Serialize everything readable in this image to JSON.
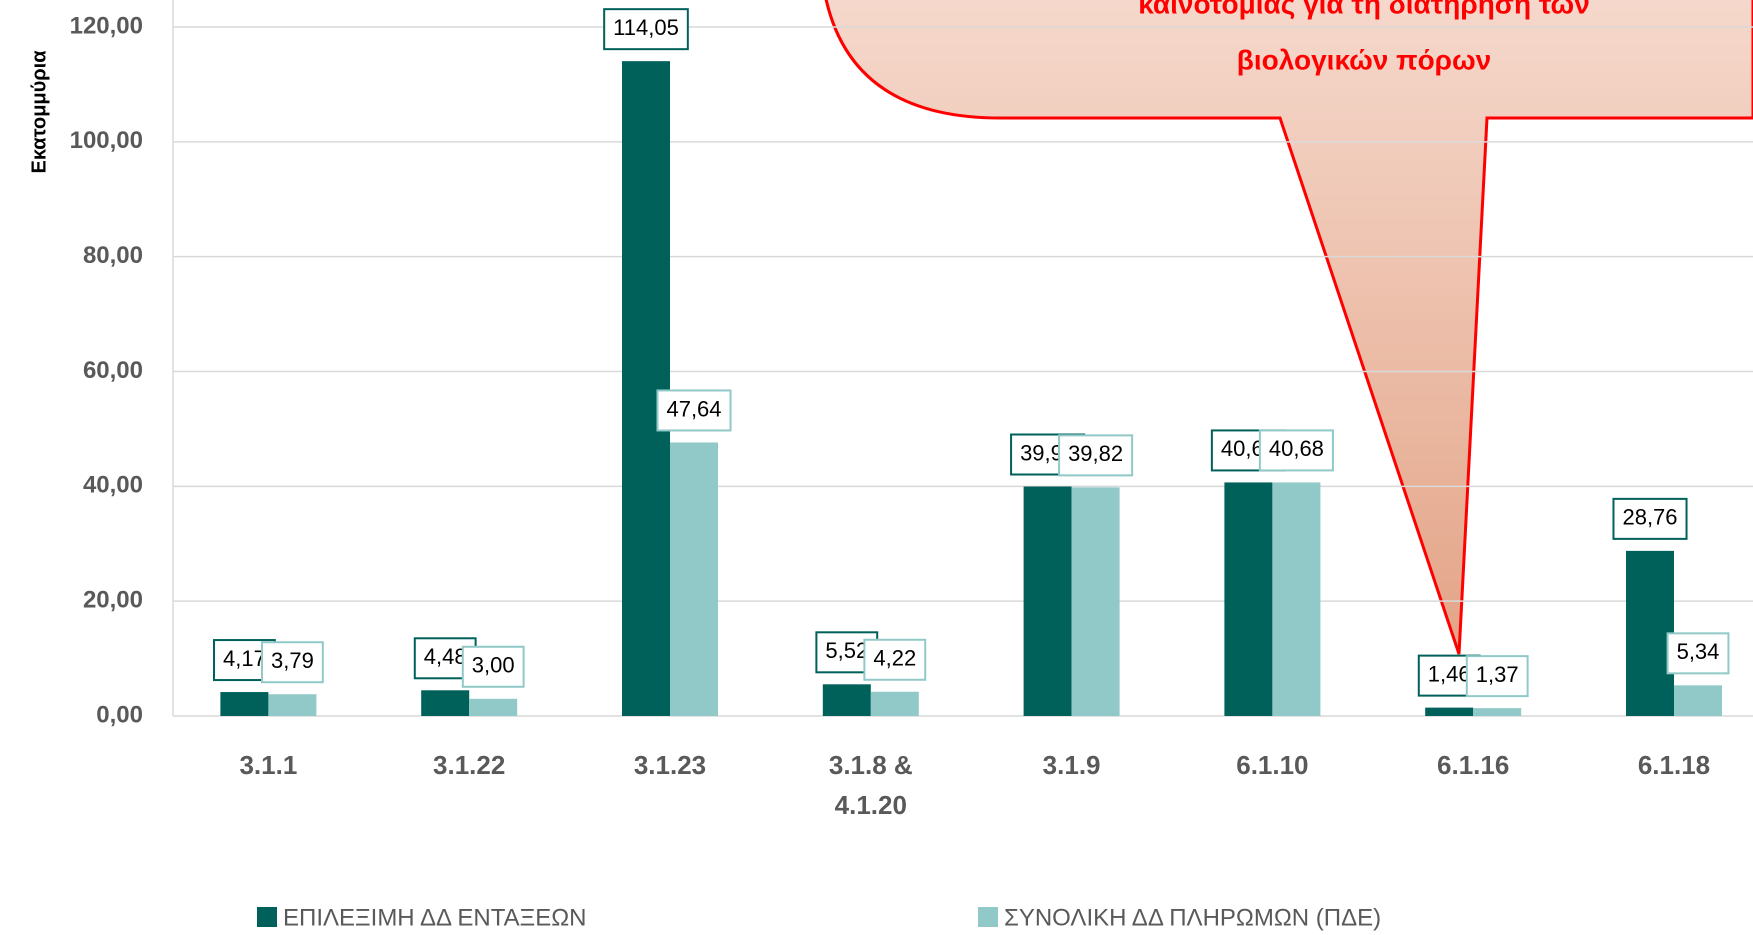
{
  "chart_data": {
    "type": "bar",
    "y_axis_label": "Εκατομμύρια",
    "annotation": [
      "καινοτομίας για τη διατήρηση των",
      "βιολογικών πόρων"
    ],
    "categories": [
      "3.1.1",
      "3.1.22",
      "3.1.23",
      "3.1.8 & 4.1.20",
      "3.1.9",
      "6.1.10",
      "6.1.16",
      "6.1.18"
    ],
    "series": [
      {
        "name": "ΕΠΙΛΕΞΙΜΗ ΔΔ ΕΝΤΑΞΕΩΝ",
        "color": "#00605a",
        "values": [
          4.17,
          4.48,
          114.05,
          5.52,
          39.97,
          40.68,
          1.46,
          28.76
        ],
        "value_labels": [
          "4,17",
          "4,48",
          "114,05",
          "5,52",
          "39,97",
          "40,68",
          "1,46",
          "28,76"
        ]
      },
      {
        "name": "ΣΥΝΟΛΙΚΗ ΔΔ ΠΛΗΡΩΜΩΝ (ΠΔΕ)",
        "color": "#90c9c8",
        "values": [
          3.79,
          3.0,
          47.64,
          4.22,
          39.82,
          40.68,
          1.37,
          5.34
        ],
        "value_labels": [
          "3,79",
          "3,00",
          "47,64",
          "4,22",
          "39,82",
          "40,68",
          "1,37",
          "5,34"
        ]
      }
    ],
    "ylim": [
      0,
      120
    ],
    "yticks": [
      {
        "value": 0,
        "label": "0,00"
      },
      {
        "value": 20,
        "label": "20,00"
      },
      {
        "value": 40,
        "label": "40,00"
      },
      {
        "value": 60,
        "label": "60,00"
      },
      {
        "value": 80,
        "label": "80,00"
      },
      {
        "value": 100,
        "label": "100,00"
      },
      {
        "value": 120,
        "label": "120,00"
      }
    ],
    "grid": true
  }
}
